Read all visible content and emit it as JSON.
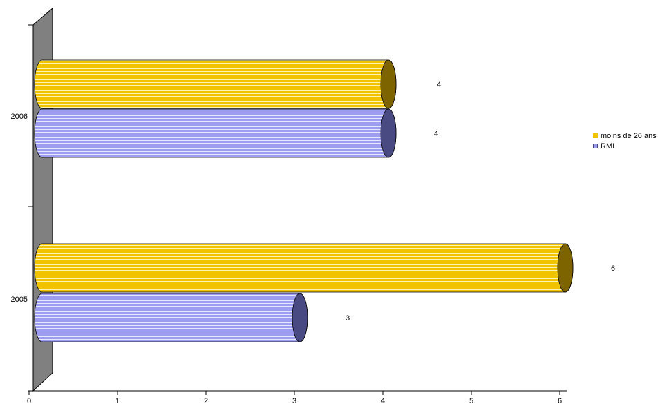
{
  "chart_data": {
    "type": "bar",
    "orientation": "horizontal",
    "style": "3d-cylinder",
    "categories": [
      "2005",
      "2006"
    ],
    "series": [
      {
        "name": "moins de 26 ans",
        "values": [
          6,
          4
        ],
        "color": "#F2C400",
        "dark": "#7D6400"
      },
      {
        "name": "RMI",
        "values": [
          3,
          4
        ],
        "color": "#9C9CF0",
        "dark": "#4A4A82"
      }
    ],
    "data_labels": {
      "2005": [
        "6",
        "3"
      ],
      "2006": [
        "4",
        "4"
      ]
    },
    "xlim": [
      0,
      6
    ],
    "x_ticks": [
      "0",
      "1",
      "2",
      "3",
      "4",
      "5",
      "6"
    ],
    "legend_position": "right",
    "grid": false
  }
}
